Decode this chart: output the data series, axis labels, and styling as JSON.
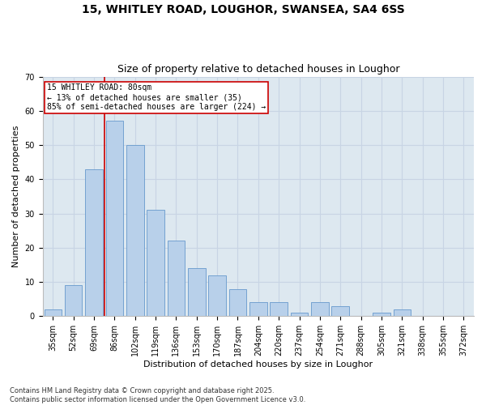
{
  "title_line1": "15, WHITLEY ROAD, LOUGHOR, SWANSEA, SA4 6SS",
  "title_line2": "Size of property relative to detached houses in Loughor",
  "xlabel": "Distribution of detached houses by size in Loughor",
  "ylabel": "Number of detached properties",
  "categories": [
    "35sqm",
    "52sqm",
    "69sqm",
    "86sqm",
    "102sqm",
    "119sqm",
    "136sqm",
    "153sqm",
    "170sqm",
    "187sqm",
    "204sqm",
    "220sqm",
    "237sqm",
    "254sqm",
    "271sqm",
    "288sqm",
    "305sqm",
    "321sqm",
    "338sqm",
    "355sqm",
    "372sqm"
  ],
  "values": [
    2,
    9,
    43,
    57,
    50,
    31,
    22,
    14,
    12,
    8,
    4,
    4,
    1,
    4,
    3,
    0,
    1,
    2,
    0,
    0,
    0
  ],
  "bar_color": "#b8d0ea",
  "bar_edge_color": "#6699cc",
  "grid_color": "#c8d4e4",
  "bg_color": "#dde8f0",
  "annotation_text": "15 WHITLEY ROAD: 80sqm\n← 13% of detached houses are smaller (35)\n85% of semi-detached houses are larger (224) →",
  "annotation_box_color": "#ffffff",
  "annotation_border_color": "#cc0000",
  "vline_color": "#cc0000",
  "ylim": [
    0,
    70
  ],
  "yticks": [
    0,
    10,
    20,
    30,
    40,
    50,
    60,
    70
  ],
  "footnote": "Contains HM Land Registry data © Crown copyright and database right 2025.\nContains public sector information licensed under the Open Government Licence v3.0.",
  "title_fontsize": 10,
  "subtitle_fontsize": 9,
  "label_fontsize": 8,
  "tick_fontsize": 7,
  "annot_fontsize": 7,
  "footnote_fontsize": 6
}
